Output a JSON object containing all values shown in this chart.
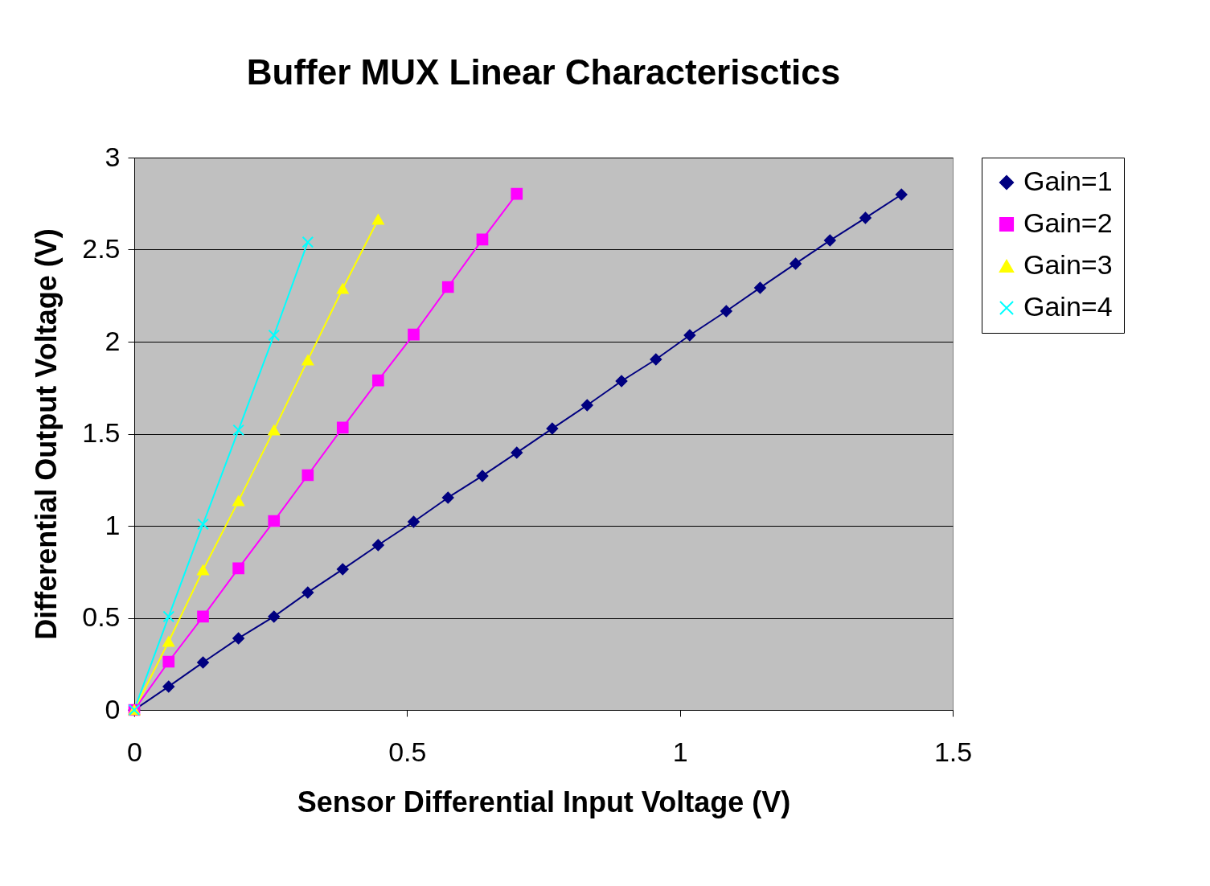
{
  "chart_data": {
    "type": "line",
    "title": "Buffer MUX Linear Characterisctics",
    "xlabel": "Sensor Differential Input Voltage (V)",
    "ylabel": "Differential Output Voltage (V)",
    "xlim": [
      0,
      1.5
    ],
    "xticks": [
      0,
      0.5,
      1,
      1.5
    ],
    "ylim": [
      0,
      3
    ],
    "yticks": [
      0,
      0.5,
      1,
      1.5,
      2,
      2.5,
      3
    ],
    "grid": "y",
    "legend": "right",
    "series": [
      {
        "name": "Gain=1",
        "color": "#000080",
        "marker": "diamond",
        "x": [
          0,
          0.063,
          0.126,
          0.191,
          0.256,
          0.318,
          0.382,
          0.447,
          0.512,
          0.575,
          0.638,
          0.701,
          0.766,
          0.83,
          0.893,
          0.956,
          1.018,
          1.085,
          1.147,
          1.212,
          1.275,
          1.34,
          1.406
        ],
        "values": [
          0,
          0.127,
          0.258,
          0.389,
          0.507,
          0.638,
          0.764,
          0.895,
          1.022,
          1.153,
          1.271,
          1.397,
          1.528,
          1.655,
          1.786,
          1.904,
          2.035,
          2.166,
          2.293,
          2.424,
          2.55,
          2.672,
          2.799
        ]
      },
      {
        "name": "Gain=2",
        "color": "#ff00ff",
        "marker": "square",
        "x": [
          0,
          0.063,
          0.126,
          0.191,
          0.256,
          0.318,
          0.382,
          0.447,
          0.512,
          0.575,
          0.638,
          0.701
        ],
        "values": [
          0,
          0.262,
          0.507,
          0.769,
          1.026,
          1.275,
          1.533,
          1.79,
          2.039,
          2.297,
          2.555,
          2.803
        ]
      },
      {
        "name": "Gain=3",
        "color": "#ffff00",
        "marker": "triangle",
        "x": [
          0,
          0.063,
          0.126,
          0.191,
          0.256,
          0.318,
          0.382,
          0.447
        ],
        "values": [
          0,
          0.371,
          0.76,
          1.135,
          1.52,
          1.9,
          2.288,
          2.664
        ]
      },
      {
        "name": "Gain=4",
        "color": "#00ffff",
        "marker": "cross",
        "x": [
          0,
          0.063,
          0.126,
          0.191,
          0.256,
          0.318
        ],
        "values": [
          0,
          0.507,
          1.009,
          1.52,
          2.035,
          2.541
        ]
      }
    ]
  }
}
